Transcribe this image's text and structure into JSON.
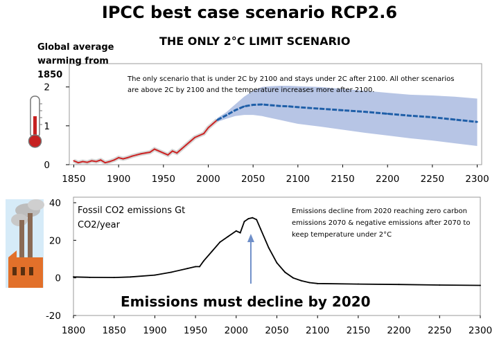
{
  "title": "IPCC best case scenario RCP2.6",
  "subtitle": "THE ONLY 2°C LIMIT SCENARIO",
  "colors": {
    "observed": "#cc2222",
    "projection": "#1f5fa8",
    "band": "#9fb2dc",
    "emissions": "#000000",
    "arrow": "#6f8fc8"
  },
  "chart_data": [
    {
      "type": "line",
      "ylabel": "Global average warming from 1850",
      "annotation": "The only scenario that is under 2C by 2100 and stays under 2C after 2100. All other scenarios are above 2C by 2100 and the temperature increases more after 2100.",
      "xlim": [
        1845,
        2305
      ],
      "ylim": [
        0,
        2.6
      ],
      "xticks": [
        1850,
        1900,
        1950,
        2000,
        2050,
        2100,
        2150,
        2200,
        2250,
        2300
      ],
      "yticks": [
        0,
        1,
        2
      ],
      "series": [
        {
          "kind": "observed",
          "x": [
            1850,
            1855,
            1860,
            1865,
            1870,
            1875,
            1880,
            1885,
            1890,
            1895,
            1900,
            1905,
            1910,
            1915,
            1920,
            1925,
            1930,
            1935,
            1940,
            1945,
            1950,
            1955,
            1960,
            1965,
            1970,
            1975,
            1980,
            1985,
            1990,
            1995,
            2000,
            2005,
            2010
          ],
          "values": [
            0.1,
            0.05,
            0.08,
            0.06,
            0.1,
            0.08,
            0.12,
            0.05,
            0.08,
            0.12,
            0.18,
            0.15,
            0.18,
            0.22,
            0.25,
            0.28,
            0.3,
            0.32,
            0.4,
            0.35,
            0.3,
            0.25,
            0.35,
            0.3,
            0.4,
            0.5,
            0.6,
            0.7,
            0.75,
            0.8,
            0.95,
            1.05,
            1.15
          ]
        },
        {
          "kind": "projection",
          "x": [
            2010,
            2020,
            2030,
            2040,
            2050,
            2060,
            2070,
            2080,
            2090,
            2100,
            2125,
            2150,
            2175,
            2200,
            2225,
            2250,
            2275,
            2300
          ],
          "values": [
            1.15,
            1.27,
            1.4,
            1.5,
            1.54,
            1.55,
            1.53,
            1.51,
            1.5,
            1.48,
            1.44,
            1.4,
            1.36,
            1.31,
            1.26,
            1.22,
            1.16,
            1.1
          ],
          "upper": [
            1.2,
            1.35,
            1.55,
            1.75,
            1.9,
            2.0,
            2.02,
            2.03,
            2.03,
            2.02,
            2.0,
            1.95,
            1.9,
            1.85,
            1.8,
            1.78,
            1.75,
            1.7
          ],
          "lower": [
            1.1,
            1.18,
            1.25,
            1.28,
            1.28,
            1.25,
            1.2,
            1.15,
            1.1,
            1.05,
            0.98,
            0.9,
            0.82,
            0.75,
            0.68,
            0.62,
            0.55,
            0.48
          ]
        }
      ]
    },
    {
      "type": "line",
      "ylabel": "Fossil CO2 emissions Gt CO2/year",
      "annotation": "Emissions decline from 2020 reaching zero carbon emissions 2070 & negative emissions after 2070 to keep temperature under 2°C",
      "footer": "Emissions must decline by 2020",
      "xlim": [
        1800,
        2300
      ],
      "ylim": [
        -20,
        40
      ],
      "xticks": [
        1800,
        1850,
        1900,
        1950,
        2000,
        2050,
        2100,
        2150,
        2200,
        2250,
        2300
      ],
      "yticks": [
        -20,
        0,
        20,
        40
      ],
      "arrow_at": 2018,
      "series": [
        {
          "kind": "emissions",
          "x": [
            1800,
            1820,
            1850,
            1870,
            1900,
            1920,
            1940,
            1950,
            1955,
            1960,
            1970,
            1980,
            1990,
            2000,
            2005,
            2010,
            2015,
            2020,
            2025,
            2030,
            2040,
            2050,
            2060,
            2070,
            2080,
            2090,
            2100,
            2150,
            2200,
            2250,
            2300
          ],
          "values": [
            0.5,
            0.3,
            0.2,
            0.5,
            1.5,
            3,
            5,
            6,
            6,
            9,
            14,
            19,
            22,
            25,
            24,
            30,
            31.5,
            32,
            31,
            26,
            16,
            8,
            3,
            0,
            -1.5,
            -2.5,
            -3,
            -3.3,
            -3.5,
            -3.8,
            -4
          ]
        }
      ]
    }
  ]
}
